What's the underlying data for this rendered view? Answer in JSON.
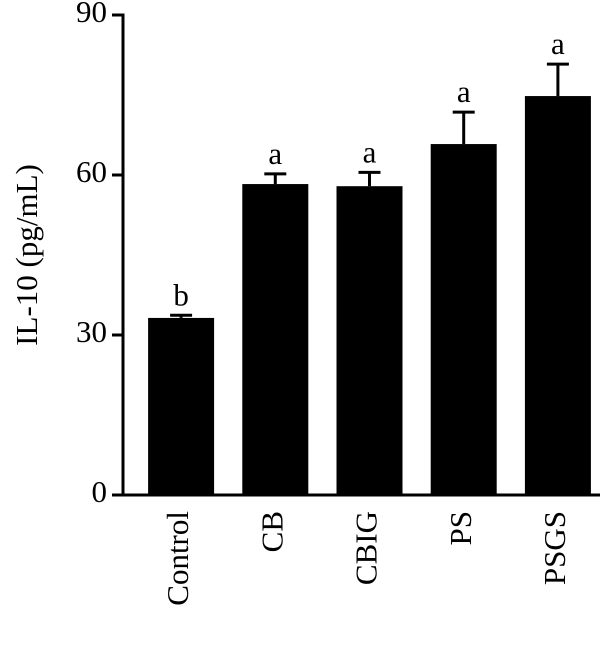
{
  "chart_data": {
    "type": "bar",
    "y_label": "IL-10 (pg/mL)",
    "categories": [
      "Control",
      "CB",
      "CBIG",
      "PS",
      "PSGS"
    ],
    "values": [
      33.2,
      58.3,
      57.9,
      65.8,
      74.8
    ],
    "errors": [
      0.5,
      1.9,
      2.6,
      6.0,
      6.0
    ],
    "annotations": [
      "b",
      "a",
      "a",
      "a",
      "a"
    ],
    "color": "#000000",
    "ylim": [
      0,
      90
    ],
    "yticks": [
      0,
      30,
      60,
      90
    ],
    "grid": false
  }
}
